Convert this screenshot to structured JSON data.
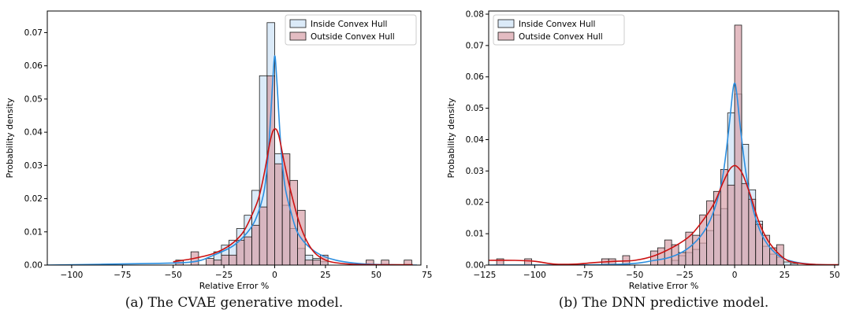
{
  "colors": {
    "inside_fill": "#cfe3f5",
    "inside_edge": "#1a1a1a",
    "inside_kde": "#2a8ee0",
    "outside_fill": "#d7a0a8",
    "outside_edge": "#1a1a1a",
    "outside_kde": "#cc1111"
  },
  "captions": {
    "a": "(a) The CVAE generative model.",
    "b": "(b) The DNN predictive model."
  },
  "chart_data": [
    {
      "type": "histogram",
      "xlabel": "Relative Error %",
      "ylabel": "Probability density",
      "xlim": [
        -112,
        72
      ],
      "ylim": [
        0,
        0.0765
      ],
      "xticks": [
        -100,
        -75,
        -50,
        -25,
        0,
        25,
        50,
        75
      ],
      "xtick_labels": [
        "−100",
        "−75",
        "−50",
        "−25",
        "0",
        "25",
        "50",
        "75"
      ],
      "yticks": [
        0.0,
        0.01,
        0.02,
        0.03,
        0.04,
        0.05,
        0.06,
        0.07
      ],
      "ytick_labels": [
        "0.00",
        "0.01",
        "0.02",
        "0.03",
        "0.04",
        "0.05",
        "0.06",
        "0.07"
      ],
      "legend_position": "top-right",
      "bin_width": 3.75,
      "series": [
        {
          "name": "Inside Convex Hull",
          "bin_start": -30,
          "values": [
            0.004,
            0.006,
            0.0075,
            0.011,
            0.015,
            0.0225,
            0.057,
            0.073,
            0.0335,
            0.018,
            0.011,
            0.005,
            0.003,
            0.002,
            0.001
          ],
          "kde_x": [
            -112,
            -60,
            -40,
            -30,
            -20,
            -12,
            -8,
            -5,
            -3,
            -1,
            0,
            1,
            3,
            5,
            8,
            12,
            20,
            30,
            45,
            70
          ],
          "kde_y": [
            0.0,
            0.0005,
            0.001,
            0.003,
            0.006,
            0.011,
            0.016,
            0.023,
            0.035,
            0.055,
            0.063,
            0.056,
            0.036,
            0.024,
            0.016,
            0.009,
            0.004,
            0.0015,
            0.0003,
            0.0
          ]
        },
        {
          "name": "Outside Convex Hull",
          "bins": [
            {
              "x": -48.75,
              "v": 0.0015
            },
            {
              "x": -41.25,
              "v": 0.004
            },
            {
              "x": -33.75,
              "v": 0.002
            },
            {
              "x": -30,
              "v": 0.0015
            },
            {
              "x": -26.25,
              "v": 0.003
            },
            {
              "x": -22.5,
              "v": 0.003
            },
            {
              "x": -18.75,
              "v": 0.0075
            },
            {
              "x": -15,
              "v": 0.0085
            },
            {
              "x": -11.25,
              "v": 0.012
            },
            {
              "x": -7.5,
              "v": 0.0175
            },
            {
              "x": -3.75,
              "v": 0.057
            },
            {
              "x": 0,
              "v": 0.0305
            },
            {
              "x": 3.75,
              "v": 0.0335
            },
            {
              "x": 7.5,
              "v": 0.0255
            },
            {
              "x": 11.25,
              "v": 0.0165
            },
            {
              "x": 15,
              "v": 0.0015
            },
            {
              "x": 18.75,
              "v": 0.0015
            },
            {
              "x": 22.5,
              "v": 0.003
            },
            {
              "x": 45,
              "v": 0.0015
            },
            {
              "x": 52.5,
              "v": 0.0015
            },
            {
              "x": 63.75,
              "v": 0.0015
            }
          ],
          "kde_x": [
            -50,
            -40,
            -30,
            -22,
            -16,
            -12,
            -8,
            -5,
            -2,
            0,
            2,
            5,
            8,
            12,
            16,
            20,
            25,
            30,
            40,
            55,
            68
          ],
          "kde_y": [
            0.001,
            0.002,
            0.0035,
            0.006,
            0.0095,
            0.014,
            0.02,
            0.028,
            0.038,
            0.041,
            0.039,
            0.03,
            0.022,
            0.013,
            0.007,
            0.0035,
            0.0015,
            0.0007,
            0.0002,
            0.0001,
            0.0001
          ]
        }
      ]
    },
    {
      "type": "histogram",
      "xlabel": "Relative Error %",
      "ylabel": "Probability density",
      "xlim": [
        -123,
        52
      ],
      "ylim": [
        0,
        0.081
      ],
      "xticks": [
        -125,
        -100,
        -75,
        -50,
        -25,
        0,
        25,
        50
      ],
      "xtick_labels": [
        "−125",
        "−100",
        "−75",
        "−50",
        "−25",
        "0",
        "25",
        "50"
      ],
      "yticks": [
        0.0,
        0.01,
        0.02,
        0.03,
        0.04,
        0.05,
        0.06,
        0.07,
        0.08
      ],
      "ytick_labels": [
        "0.00",
        "0.01",
        "0.02",
        "0.03",
        "0.04",
        "0.05",
        "0.06",
        "0.07",
        "0.08"
      ],
      "legend_position": "top-left",
      "bin_width": 3.5,
      "series": [
        {
          "name": "Inside Convex Hull",
          "bin_start": -31.5,
          "values": [
            0.0015,
            0.003,
            0.004,
            0.005,
            0.007,
            0.011,
            0.016,
            0.018,
            0.0485,
            0.0545,
            0.0385,
            0.024,
            0.014,
            0.006,
            0.0035,
            0.0025,
            0.001,
            0.0005
          ],
          "kde_x": [
            -123,
            -60,
            -40,
            -30,
            -22,
            -15,
            -10,
            -6,
            -3,
            -1,
            0,
            1,
            3,
            6,
            10,
            15,
            22,
            30,
            40,
            52
          ],
          "kde_y": [
            0.0,
            0.0002,
            0.0015,
            0.003,
            0.006,
            0.011,
            0.018,
            0.028,
            0.043,
            0.055,
            0.058,
            0.055,
            0.043,
            0.028,
            0.016,
            0.008,
            0.003,
            0.001,
            0.0002,
            0.0
          ]
        },
        {
          "name": "Outside Convex Hull",
          "bins": [
            {
              "x": -119,
              "v": 0.002
            },
            {
              "x": -105,
              "v": 0.002
            },
            {
              "x": -66.5,
              "v": 0.002
            },
            {
              "x": -63,
              "v": 0.002
            },
            {
              "x": -56,
              "v": 0.003
            },
            {
              "x": -42,
              "v": 0.0045
            },
            {
              "x": -38.5,
              "v": 0.0055
            },
            {
              "x": -35,
              "v": 0.008
            },
            {
              "x": -31.5,
              "v": 0.0065
            },
            {
              "x": -28,
              "v": 0.004
            },
            {
              "x": -24.5,
              "v": 0.0105
            },
            {
              "x": -21,
              "v": 0.0095
            },
            {
              "x": -17.5,
              "v": 0.016
            },
            {
              "x": -14,
              "v": 0.0205
            },
            {
              "x": -10.5,
              "v": 0.0235
            },
            {
              "x": -7,
              "v": 0.0305
            },
            {
              "x": -3.5,
              "v": 0.0255
            },
            {
              "x": 0,
              "v": 0.0765
            },
            {
              "x": 3.5,
              "v": 0.026
            },
            {
              "x": 7,
              "v": 0.021
            },
            {
              "x": 10.5,
              "v": 0.013
            },
            {
              "x": 14,
              "v": 0.0095
            },
            {
              "x": 17.5,
              "v": 0.0055
            },
            {
              "x": 21,
              "v": 0.0065
            }
          ],
          "kde_x": [
            -123,
            -110,
            -100,
            -90,
            -80,
            -70,
            -60,
            -50,
            -40,
            -30,
            -22,
            -15,
            -10,
            -6,
            -3,
            -1,
            1,
            4,
            8,
            12,
            16,
            20,
            25,
            30,
            40,
            52
          ],
          "kde_y": [
            0.0015,
            0.0015,
            0.0012,
            0.0003,
            0.0003,
            0.0008,
            0.0012,
            0.0015,
            0.003,
            0.006,
            0.0095,
            0.015,
            0.02,
            0.026,
            0.03,
            0.0315,
            0.0315,
            0.029,
            0.022,
            0.014,
            0.0085,
            0.005,
            0.002,
            0.0008,
            0.0002,
            0.0001
          ]
        }
      ]
    }
  ]
}
